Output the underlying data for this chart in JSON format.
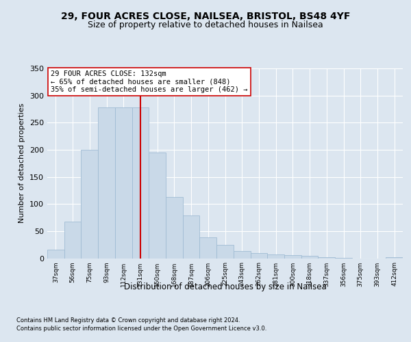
{
  "title1": "29, FOUR ACRES CLOSE, NAILSEA, BRISTOL, BS48 4YF",
  "title2": "Size of property relative to detached houses in Nailsea",
  "xlabel": "Distribution of detached houses by size in Nailsea",
  "ylabel": "Number of detached properties",
  "categories": [
    "37sqm",
    "56sqm",
    "75sqm",
    "93sqm",
    "112sqm",
    "131sqm",
    "150sqm",
    "168sqm",
    "187sqm",
    "206sqm",
    "225sqm",
    "243sqm",
    "262sqm",
    "281sqm",
    "300sqm",
    "318sqm",
    "337sqm",
    "356sqm",
    "375sqm",
    "393sqm",
    "412sqm"
  ],
  "values": [
    16,
    67,
    200,
    278,
    278,
    278,
    195,
    113,
    79,
    38,
    25,
    13,
    10,
    7,
    6,
    4,
    2,
    1,
    0,
    0,
    2
  ],
  "bar_color": "#c9d9e8",
  "bar_edge_color": "#a0bcd4",
  "vline_x_idx": 5,
  "vline_color": "#cc0000",
  "annotation_line1": "29 FOUR ACRES CLOSE: 132sqm",
  "annotation_line2": "← 65% of detached houses are smaller (848)",
  "annotation_line3": "35% of semi-detached houses are larger (462) →",
  "annotation_box_color": "#ffffff",
  "annotation_box_edge": "#cc0000",
  "footnote1": "Contains HM Land Registry data © Crown copyright and database right 2024.",
  "footnote2": "Contains public sector information licensed under the Open Government Licence v3.0.",
  "background_color": "#dce6f0",
  "plot_bg_color": "#dce6f0",
  "ylim": [
    0,
    350
  ],
  "yticks": [
    0,
    50,
    100,
    150,
    200,
    250,
    300,
    350
  ],
  "title1_fontsize": 10,
  "title2_fontsize": 9,
  "xlabel_fontsize": 8.5,
  "ylabel_fontsize": 8
}
